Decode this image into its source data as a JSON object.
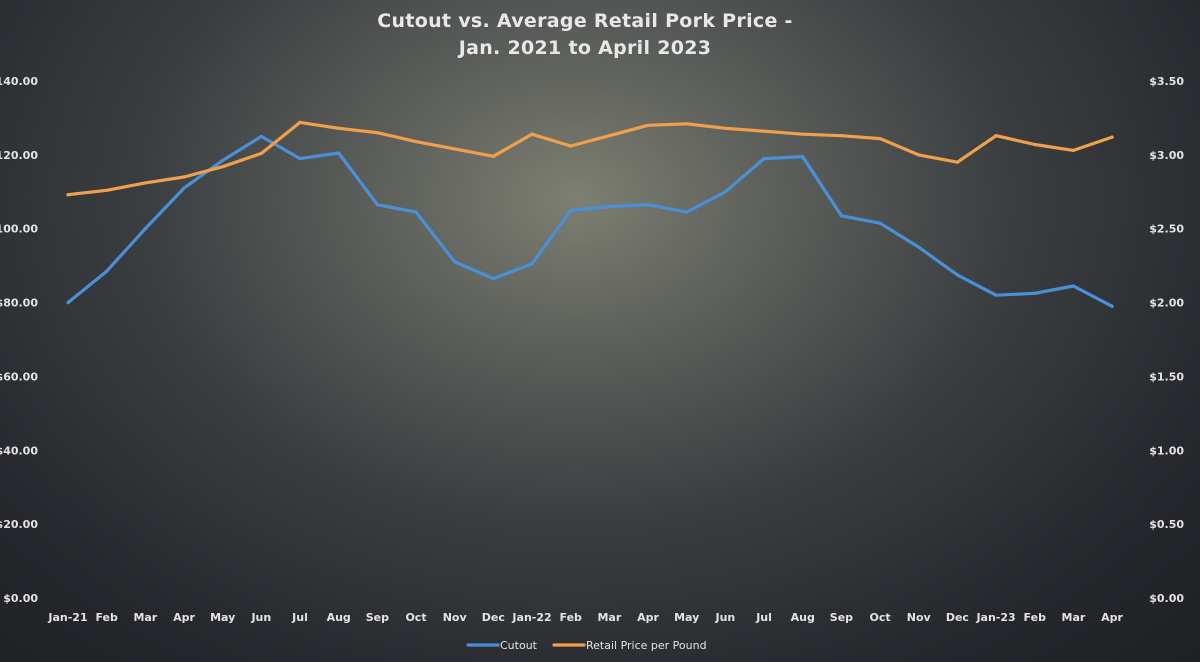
{
  "chart_data": {
    "type": "line",
    "title_line1": "Cutout vs. Average Retail Pork Price -",
    "title_line2": "Jan. 2021 to April 2023",
    "categories": [
      "Jan-21",
      "Feb",
      "Mar",
      "Apr",
      "May",
      "Jun",
      "Jul",
      "Aug",
      "Sep",
      "Oct",
      "Nov",
      "Dec",
      "Jan-22",
      "Feb",
      "Mar",
      "Apr",
      "May",
      "Jun",
      "Jul",
      "Aug",
      "Sep",
      "Oct",
      "Nov",
      "Dec",
      "Jan-23",
      "Feb",
      "Mar",
      "Apr"
    ],
    "y_left": {
      "ticks": [
        "$0.00",
        "$20.00",
        "$40.00",
        "$60.00",
        "$80.00",
        "$100.00",
        "$120.00",
        "140.00"
      ],
      "ylim": [
        0,
        140
      ]
    },
    "y_right": {
      "ticks": [
        "$0.00",
        "$0.50",
        "$1.00",
        "$1.50",
        "$2.00",
        "$2.50",
        "$3.00",
        "$3.50"
      ],
      "ylim": [
        0,
        3.5
      ]
    },
    "series": [
      {
        "name": "Cutout",
        "axis": "left",
        "color": "#4a90d9",
        "values": [
          80,
          88.5,
          100,
          111,
          118.5,
          125,
          119,
          120.5,
          106.5,
          104.5,
          91,
          86.5,
          90.5,
          105,
          106,
          106.5,
          104.5,
          110,
          119,
          119.5,
          103.5,
          101.5,
          95,
          87.5,
          82,
          82.5,
          84.5,
          79
        ]
      },
      {
        "name": "Retail Price per Pound",
        "axis": "right",
        "color": "#f0a04b",
        "values": [
          2.73,
          2.76,
          2.81,
          2.85,
          2.92,
          3.01,
          3.22,
          3.18,
          3.15,
          3.09,
          3.04,
          2.99,
          3.14,
          3.06,
          3.13,
          3.2,
          3.21,
          3.18,
          3.16,
          3.14,
          3.13,
          3.11,
          3.0,
          2.95,
          3.13,
          3.07,
          3.03,
          3.12
        ]
      }
    ],
    "legend_position": "bottom",
    "grid": false
  }
}
